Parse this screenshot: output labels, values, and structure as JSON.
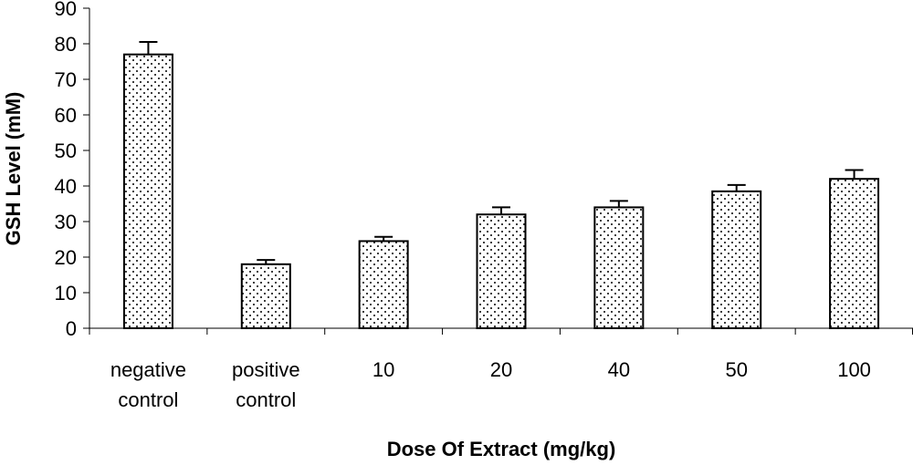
{
  "chart_data": {
    "type": "bar",
    "xlabel": "Dose Of Extract (mg/kg)",
    "ylabel": "GSH Level (mM)",
    "ylim": [
      0,
      90
    ],
    "yticks": [
      0,
      10,
      20,
      30,
      40,
      50,
      60,
      70,
      80,
      90
    ],
    "categories": [
      [
        "negative",
        "control"
      ],
      [
        "positive",
        "control"
      ],
      [
        "10"
      ],
      [
        "20"
      ],
      [
        "40"
      ],
      [
        "50"
      ],
      [
        "100"
      ]
    ],
    "values": [
      77,
      18,
      24.5,
      32,
      34,
      38.5,
      42
    ],
    "errors": [
      3.5,
      1.2,
      1.2,
      2,
      1.8,
      1.8,
      2.5
    ],
    "grid": false,
    "legend": "none",
    "bar_fill": "dotted",
    "bar_stroke": "#000000"
  }
}
